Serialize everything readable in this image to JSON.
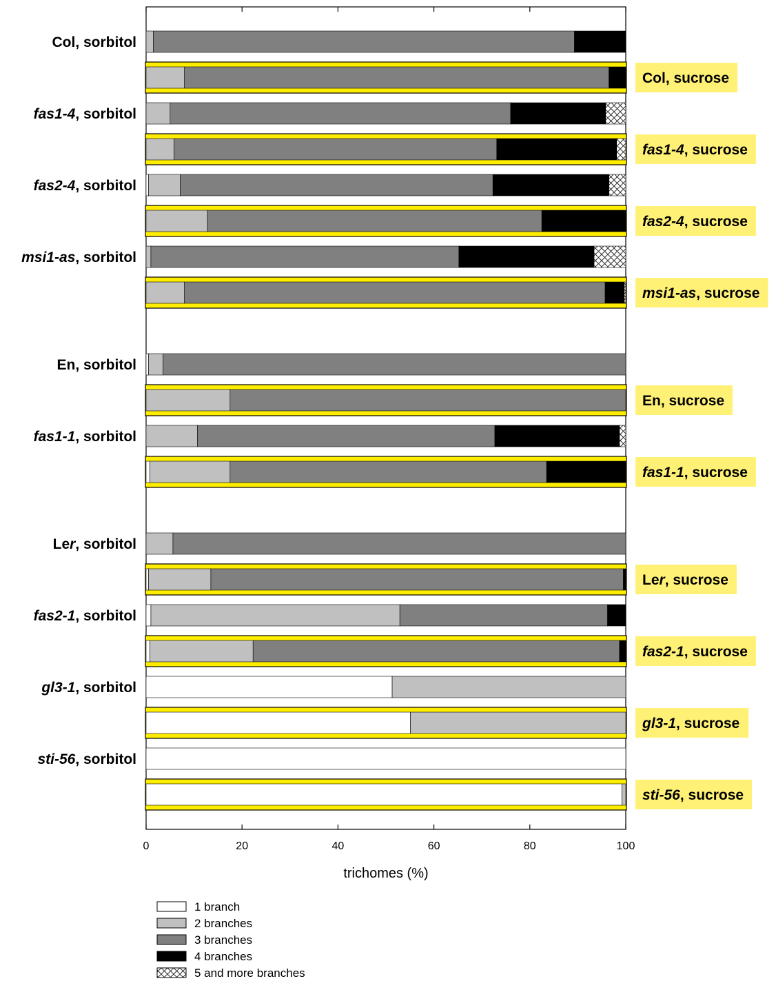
{
  "chart_data": {
    "type": "bar",
    "orientation": "horizontal",
    "stacked": true,
    "xlabel": "trichomes (%)",
    "xlim": [
      0,
      100
    ],
    "xticks": [
      "0",
      "20",
      "40",
      "60",
      "80",
      "100"
    ],
    "grid": false,
    "legend_position": "bottom-left",
    "colors": {
      "1 branch": "#ffffff",
      "2 branches": "#c0c0c0",
      "3 branches": "#808080",
      "4 branches": "#000000",
      "5 and more branches": "crosshatch",
      "sucrose_highlight": "#ffed00",
      "label_highlight": "#fff176"
    },
    "series": [
      {
        "name": "1 branch"
      },
      {
        "name": "2 branches"
      },
      {
        "name": "3 branches"
      },
      {
        "name": "4 branches"
      },
      {
        "name": "5 and more branches"
      }
    ],
    "rows": [
      {
        "genotype": "Col",
        "gen_italic": false,
        "treatment": "sorbitol",
        "values": [
          0,
          1.5,
          87.8,
          10.7,
          0
        ]
      },
      {
        "genotype": "Col",
        "gen_italic": false,
        "treatment": "sucrose",
        "values": [
          0,
          8,
          88.5,
          3.5,
          0
        ]
      },
      {
        "genotype": "fas1-4",
        "gen_italic": true,
        "treatment": "sorbitol",
        "values": [
          0,
          5,
          71,
          19.8,
          4.2
        ]
      },
      {
        "genotype": "fas1-4",
        "gen_italic": true,
        "treatment": "sucrose",
        "values": [
          0,
          5.8,
          67.3,
          25,
          1.9
        ]
      },
      {
        "genotype": "fas2-4",
        "gen_italic": true,
        "treatment": "sorbitol",
        "values": [
          0.5,
          6.6,
          65.2,
          24.2,
          3.5
        ]
      },
      {
        "genotype": "fas2-4",
        "gen_italic": true,
        "treatment": "sucrose",
        "values": [
          0,
          12.8,
          69.7,
          17.5,
          0
        ]
      },
      {
        "genotype": "msi1-as",
        "gen_italic": true,
        "treatment": "sorbitol",
        "values": [
          0,
          1,
          64.2,
          28.2,
          6.6
        ]
      },
      {
        "genotype": "msi1-as",
        "gen_italic": true,
        "treatment": "sucrose",
        "values": [
          0,
          8,
          87.7,
          4,
          0.3
        ]
      },
      {
        "genotype": "En",
        "gen_italic": false,
        "treatment": "sorbitol",
        "values": [
          0.5,
          3,
          96.5,
          0,
          0
        ]
      },
      {
        "genotype": "En",
        "gen_italic": false,
        "treatment": "sucrose",
        "values": [
          0,
          17.5,
          82.5,
          0,
          0
        ]
      },
      {
        "genotype": "fas1-1",
        "gen_italic": true,
        "treatment": "sorbitol",
        "values": [
          0,
          10.7,
          62,
          26,
          1.3
        ]
      },
      {
        "genotype": "fas1-1",
        "gen_italic": true,
        "treatment": "sucrose",
        "values": [
          0.8,
          16.7,
          66,
          16.5,
          0
        ]
      },
      {
        "genotype": "Ler",
        "gen_italic": false,
        "treatment": "sorbitol",
        "values": [
          0,
          5.6,
          94.4,
          0,
          0
        ]
      },
      {
        "genotype": "Ler",
        "gen_italic": false,
        "treatment": "sucrose",
        "values": [
          0.5,
          13,
          86,
          0.5,
          0
        ]
      },
      {
        "genotype": "fas2-1",
        "gen_italic": true,
        "treatment": "sorbitol",
        "values": [
          1,
          51.9,
          43.3,
          3.8,
          0
        ]
      },
      {
        "genotype": "fas2-1",
        "gen_italic": true,
        "treatment": "sucrose",
        "values": [
          0.8,
          21.5,
          76.4,
          1.3,
          0
        ]
      },
      {
        "genotype": "gl3-1",
        "gen_italic": true,
        "treatment": "sorbitol",
        "values": [
          51.3,
          48.7,
          0,
          0,
          0
        ]
      },
      {
        "genotype": "gl3-1",
        "gen_italic": true,
        "treatment": "sucrose",
        "values": [
          55.1,
          44.9,
          0,
          0,
          0
        ]
      },
      {
        "genotype": "sti-56",
        "gen_italic": true,
        "treatment": "sorbitol",
        "values": [
          100,
          0,
          0,
          0,
          0
        ]
      },
      {
        "genotype": "sti-56",
        "gen_italic": true,
        "treatment": "sucrose",
        "values": [
          99.2,
          0.8,
          0,
          0,
          0
        ]
      }
    ]
  }
}
